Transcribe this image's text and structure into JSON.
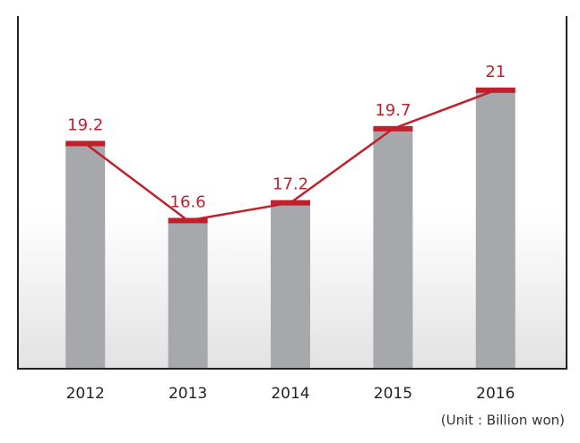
{
  "chart_data": {
    "type": "bar",
    "categories": [
      "2012",
      "2013",
      "2014",
      "2015",
      "2016"
    ],
    "values": [
      19.2,
      16.6,
      17.2,
      19.7,
      21
    ],
    "color": "#a7a8ab",
    "line_color": "#c0202e",
    "line": true,
    "ylim": [
      11.6,
      23.5
    ],
    "annotation": "(Unit : Billion won)"
  }
}
